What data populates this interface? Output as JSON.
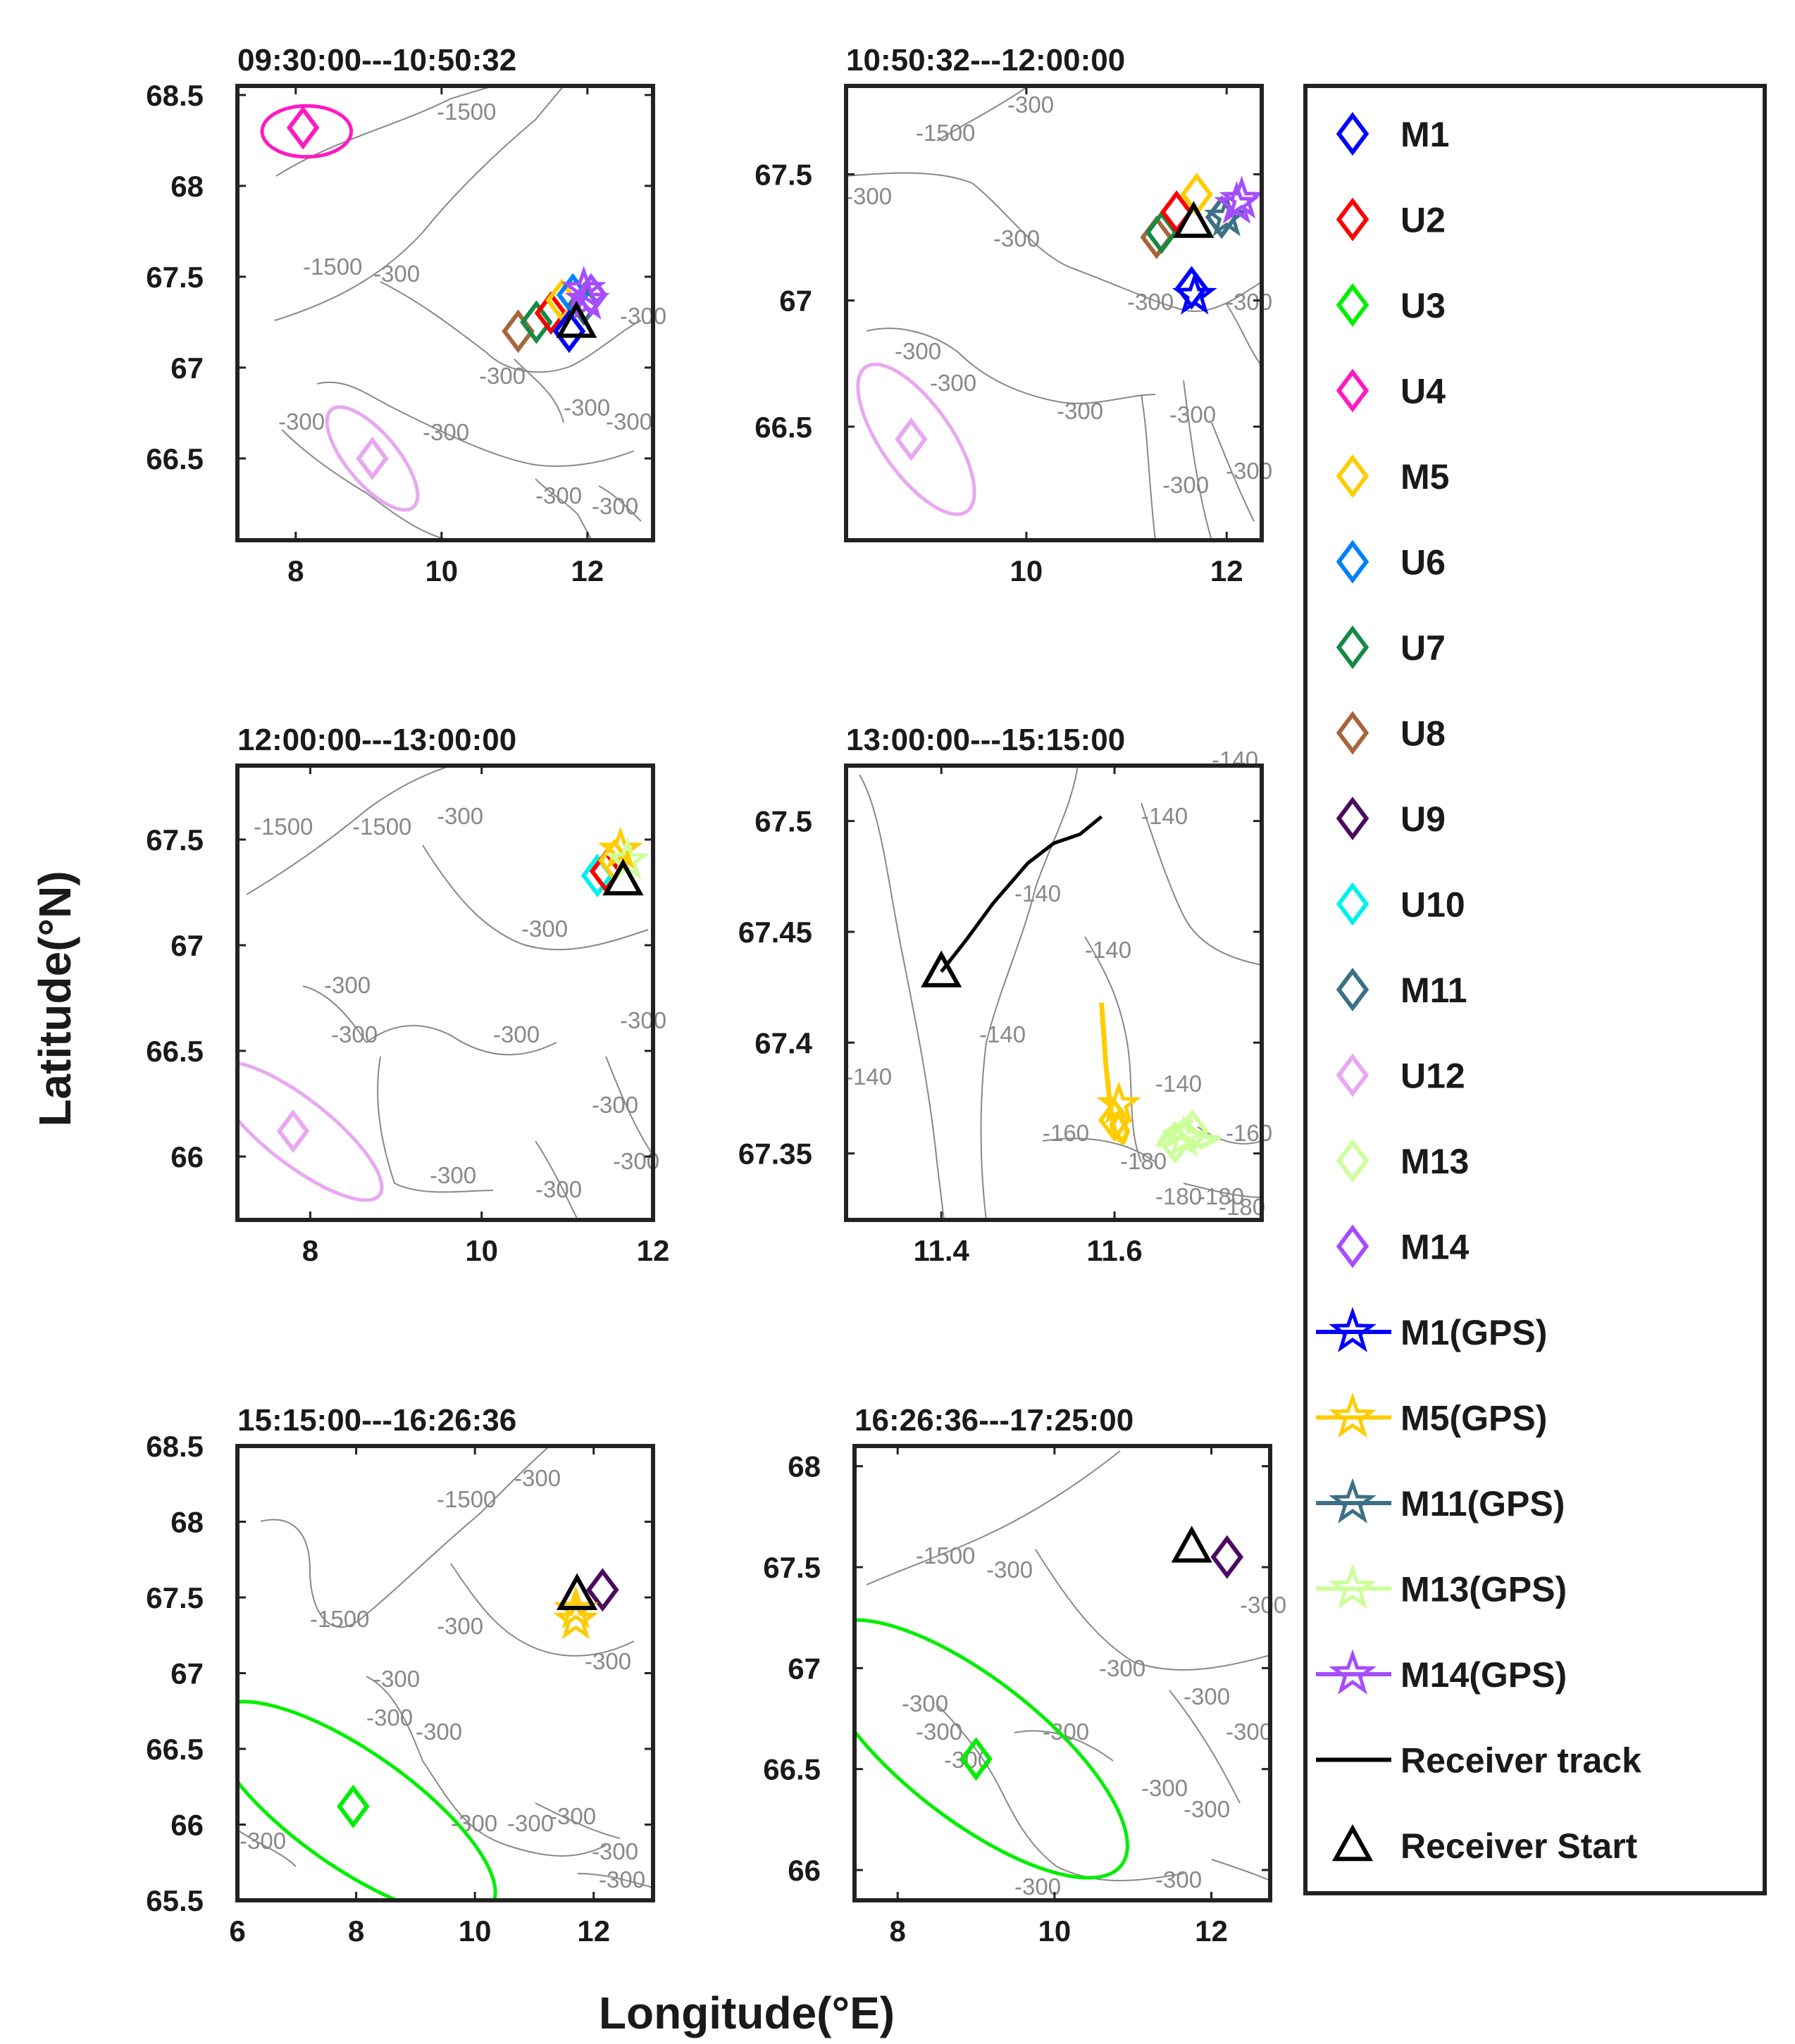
{
  "figure": {
    "xlabel": "Longitude(°E)",
    "ylabel": "Latitude(°N)"
  },
  "colors": {
    "M1": "#0000ff",
    "U2": "#ff0000",
    "U3": "#00ee00",
    "U4": "#ff19c0",
    "M5": "#ffcc00",
    "U6": "#0080ff",
    "U7": "#158a45",
    "U8": "#a8643c",
    "U9": "#4b0a60",
    "U10": "#00f0f0",
    "M11": "#3c7086",
    "U12": "#e8a8f0",
    "M13": "#ccff99",
    "M14": "#a64dff",
    "receiver": "#000000",
    "contour": "#888888"
  },
  "legend": {
    "items": [
      {
        "label": "M1",
        "marker": "diamond",
        "color": "#0000ff"
      },
      {
        "label": "U2",
        "marker": "diamond",
        "color": "#ff0000"
      },
      {
        "label": "U3",
        "marker": "diamond",
        "color": "#00ee00"
      },
      {
        "label": "U4",
        "marker": "diamond",
        "color": "#ff19c0"
      },
      {
        "label": "M5",
        "marker": "diamond",
        "color": "#ffcc00"
      },
      {
        "label": "U6",
        "marker": "diamond",
        "color": "#0080ff"
      },
      {
        "label": "U7",
        "marker": "diamond",
        "color": "#158a45"
      },
      {
        "label": "U8",
        "marker": "diamond",
        "color": "#a8643c"
      },
      {
        "label": "U9",
        "marker": "diamond",
        "color": "#4b0a60"
      },
      {
        "label": "U10",
        "marker": "diamond",
        "color": "#00f0f0"
      },
      {
        "label": "M11",
        "marker": "diamond",
        "color": "#3c7086"
      },
      {
        "label": "U12",
        "marker": "diamond",
        "color": "#e8a8f0"
      },
      {
        "label": "M13",
        "marker": "diamond",
        "color": "#ccff99"
      },
      {
        "label": "M14",
        "marker": "diamond",
        "color": "#a64dff"
      },
      {
        "label": "M1(GPS)",
        "marker": "star-line",
        "color": "#0000ff"
      },
      {
        "label": "M5(GPS)",
        "marker": "star-line",
        "color": "#ffcc00"
      },
      {
        "label": "M11(GPS)",
        "marker": "star-line",
        "color": "#3c7086"
      },
      {
        "label": "M13(GPS)",
        "marker": "star-line",
        "color": "#ccff99"
      },
      {
        "label": "M14(GPS)",
        "marker": "star-line",
        "color": "#a64dff"
      },
      {
        "label": "Receiver track",
        "marker": "line",
        "color": "#000000"
      },
      {
        "label": "Receiver Start",
        "marker": "triangle",
        "color": "#000000"
      }
    ]
  },
  "chart_data": [
    {
      "type": "scatter",
      "title": "09:30:00---10:50:32",
      "xlim": [
        7.2,
        12.9
      ],
      "ylim": [
        66.05,
        68.55
      ],
      "xticks": [
        8,
        10,
        12
      ],
      "yticks": [
        66.5,
        67,
        67.5,
        68,
        68.5
      ],
      "xtick_labels": [
        "8",
        "10",
        "12"
      ],
      "ytick_labels": [
        "66.5",
        "67",
        "67.5",
        "68",
        "68.5"
      ],
      "contour_labels": [
        "-1500",
        "-1500",
        "-300",
        "-300",
        "-300",
        "-300",
        "-300",
        "-300",
        "-300",
        "-300",
        "-300"
      ],
      "diamonds": [
        {
          "id": "U4",
          "lon": 8.1,
          "lat": 68.32
        },
        {
          "id": "U12",
          "lon": 9.05,
          "lat": 66.5
        },
        {
          "id": "U8",
          "lon": 11.05,
          "lat": 67.2
        },
        {
          "id": "U7",
          "lon": 11.3,
          "lat": 67.25
        },
        {
          "id": "U2",
          "lon": 11.5,
          "lat": 67.3
        },
        {
          "id": "M5",
          "lon": 11.65,
          "lat": 67.37
        },
        {
          "id": "U6",
          "lon": 11.8,
          "lat": 67.4
        },
        {
          "id": "M1",
          "lon": 11.75,
          "lat": 67.2
        },
        {
          "id": "M11",
          "lon": 11.95,
          "lat": 67.35
        },
        {
          "id": "M14",
          "lon": 12.05,
          "lat": 67.4
        }
      ],
      "ellipses": [
        {
          "id": "U4",
          "lon": 8.15,
          "lat": 68.3,
          "semi_major_deg": 0.35,
          "semi_minor_deg": 0.2,
          "angle": 0
        },
        {
          "id": "U12",
          "lon": 9.05,
          "lat": 66.5,
          "semi_major_deg": 0.5,
          "semi_minor_deg": 0.2,
          "angle": 50
        }
      ],
      "stars": [
        {
          "id": "M14",
          "lon": 12.0,
          "lat": 67.37
        },
        {
          "id": "M14",
          "lon": 11.95,
          "lat": 67.43
        }
      ],
      "receiver_start": {
        "lon": 11.85,
        "lat": 67.25
      }
    },
    {
      "type": "scatter",
      "title": "10:50:32---12:00:00",
      "xlim": [
        8.2,
        12.35
      ],
      "ylim": [
        66.05,
        67.85
      ],
      "xticks": [
        10,
        12
      ],
      "yticks": [
        66.5,
        67,
        67.5
      ],
      "xtick_labels": [
        "10",
        "12"
      ],
      "ytick_labels": [
        "66.5",
        "67",
        "67.5"
      ],
      "contour_labels": [
        "-1500",
        "-300",
        "-300",
        "-300",
        "-300",
        "-300",
        "-300",
        "-300",
        "-300",
        "-300",
        "-300",
        "-300"
      ],
      "diamonds": [
        {
          "id": "U8",
          "lon": 11.3,
          "lat": 67.25
        },
        {
          "id": "U7",
          "lon": 11.35,
          "lat": 67.27
        },
        {
          "id": "U2",
          "lon": 11.5,
          "lat": 67.35
        },
        {
          "id": "M5",
          "lon": 11.7,
          "lat": 67.42
        },
        {
          "id": "M11",
          "lon": 11.95,
          "lat": 67.33
        },
        {
          "id": "M1",
          "lon": 11.65,
          "lat": 67.05
        },
        {
          "id": "U12",
          "lon": 8.85,
          "lat": 66.45
        }
      ],
      "ellipses": [
        {
          "id": "U12",
          "lon": 8.9,
          "lat": 66.45,
          "semi_major_deg": 0.5,
          "semi_minor_deg": 0.2,
          "angle": 55
        }
      ],
      "stars": [
        {
          "id": "M1",
          "lon": 11.68,
          "lat": 67.02
        },
        {
          "id": "M11",
          "lon": 12.0,
          "lat": 67.33
        },
        {
          "id": "M14",
          "lon": 12.15,
          "lat": 67.4
        },
        {
          "id": "M14",
          "lon": 12.1,
          "lat": 67.38
        }
      ],
      "receiver_start": {
        "lon": 11.67,
        "lat": 67.31
      }
    },
    {
      "type": "scatter",
      "title": "12:00:00---13:00:00",
      "xlim": [
        7.15,
        12.0
      ],
      "ylim": [
        65.7,
        67.85
      ],
      "xticks": [
        8,
        10,
        12
      ],
      "yticks": [
        66,
        66.5,
        67,
        67.5
      ],
      "xtick_labels": [
        "8",
        "10",
        "12"
      ],
      "ytick_labels": [
        "66",
        "66.5",
        "67",
        "67.5"
      ],
      "contour_labels": [
        "-1500",
        "-1500",
        "-300",
        "-300",
        "-300",
        "-300",
        "-300",
        "-300",
        "-300",
        "-300",
        "-300",
        "-300"
      ],
      "diamonds": [
        {
          "id": "U10",
          "lon": 11.35,
          "lat": 67.33
        },
        {
          "id": "U2",
          "lon": 11.45,
          "lat": 67.35
        },
        {
          "id": "M5",
          "lon": 11.55,
          "lat": 67.4
        },
        {
          "id": "U12",
          "lon": 7.8,
          "lat": 66.12
        }
      ],
      "ellipses": [
        {
          "id": "U12",
          "lon": 7.85,
          "lat": 66.12,
          "semi_major_deg": 0.7,
          "semi_minor_deg": 0.22,
          "angle": 38
        }
      ],
      "stars": [
        {
          "id": "M5",
          "lon": 11.62,
          "lat": 67.45
        },
        {
          "id": "M13",
          "lon": 11.7,
          "lat": 67.4
        }
      ],
      "receiver_start": {
        "lon": 11.65,
        "lat": 67.31
      }
    },
    {
      "type": "line",
      "title": "13:00:00---15:15:00",
      "xlim": [
        11.29,
        11.77
      ],
      "ylim": [
        67.32,
        67.525
      ],
      "xticks": [
        11.4,
        11.6
      ],
      "yticks": [
        67.35,
        67.4,
        67.45,
        67.5
      ],
      "xtick_labels": [
        "11.4",
        "11.6"
      ],
      "ytick_labels": [
        "67.35",
        "67.4",
        "67.45",
        "67.5"
      ],
      "contour_labels": [
        "-140",
        "-140",
        "-140",
        "-140",
        "-140",
        "-140",
        "-140",
        "-160",
        "-180",
        "-180",
        "-180",
        "-180",
        "-160"
      ],
      "receiver_track": {
        "lon": [
          11.4,
          11.43,
          11.46,
          11.5,
          11.53,
          11.56,
          11.585
        ],
        "lat": [
          67.432,
          67.447,
          67.463,
          67.481,
          67.49,
          67.494,
          67.502
        ]
      },
      "m5_track": {
        "lon": [
          11.585,
          11.59,
          11.595,
          11.6,
          11.61,
          11.615,
          11.605,
          11.597,
          11.6,
          11.61
        ],
        "lat": [
          67.418,
          67.39,
          67.372,
          67.36,
          67.355,
          67.36,
          67.368,
          67.363,
          67.358,
          67.355
        ]
      },
      "m13_track": {
        "lon": [
          11.65,
          11.66,
          11.68,
          11.7,
          11.72,
          11.7,
          11.68,
          11.66,
          11.675,
          11.69
        ],
        "lat": [
          67.353,
          67.36,
          67.364,
          67.358,
          67.357,
          67.353,
          67.358,
          67.354,
          67.362,
          67.365
        ]
      },
      "diamonds": [
        {
          "id": "M5",
          "lon": 11.6,
          "lat": 67.365
        },
        {
          "id": "M13",
          "lon": 11.67,
          "lat": 67.355
        },
        {
          "id": "M13",
          "lon": 11.69,
          "lat": 67.36
        }
      ],
      "stars": [
        {
          "id": "M5",
          "lon": 11.605,
          "lat": 67.372
        },
        {
          "id": "M13",
          "lon": 11.68,
          "lat": 67.357
        }
      ],
      "receiver_start": {
        "lon": 11.4,
        "lat": 67.432
      }
    },
    {
      "type": "scatter",
      "title": "15:15:00---16:26:36",
      "xlim": [
        6.0,
        13.0
      ],
      "ylim": [
        65.5,
        68.5
      ],
      "xticks": [
        6,
        8,
        10,
        12
      ],
      "yticks": [
        65.5,
        66,
        66.5,
        67,
        67.5,
        68,
        68.5
      ],
      "xtick_labels": [
        "6",
        "8",
        "10",
        "12"
      ],
      "ytick_labels": [
        "65.5",
        "66",
        "66.5",
        "67",
        "67.5",
        "68",
        "68.5"
      ],
      "contour_labels": [
        "-1500",
        "-1500",
        "-300",
        "-300",
        "-300",
        "-300",
        "-300",
        "-300",
        "-300",
        "-300",
        "-300",
        "-300",
        "-300",
        "-300"
      ],
      "diamonds": [
        {
          "id": "U3",
          "lon": 7.95,
          "lat": 66.12
        },
        {
          "id": "U9",
          "lon": 12.15,
          "lat": 67.55
        }
      ],
      "ellipses": [
        {
          "id": "U3",
          "lon": 7.95,
          "lat": 66.1,
          "semi_major_deg": 1.6,
          "semi_minor_deg": 0.55,
          "angle": 35
        }
      ],
      "stars": [
        {
          "id": "M5",
          "lon": 11.7,
          "lat": 67.42
        },
        {
          "id": "M5",
          "lon": 11.7,
          "lat": 67.35
        }
      ],
      "receiver_start": {
        "lon": 11.72,
        "lat": 67.52
      }
    },
    {
      "type": "scatter",
      "title": "16:26:36---17:25:00",
      "xlim": [
        7.45,
        12.75
      ],
      "ylim": [
        65.85,
        68.1
      ],
      "xticks": [
        8,
        10,
        12
      ],
      "yticks": [
        66,
        66.5,
        67,
        67.5,
        68
      ],
      "xtick_labels": [
        "8",
        "10",
        "12"
      ],
      "ytick_labels": [
        "66",
        "66.5",
        "67",
        "67.5",
        "68"
      ],
      "contour_labels": [
        "-1500",
        "-300",
        "-300",
        "-300",
        "-300",
        "-300",
        "-300",
        "-300",
        "-300",
        "-300",
        "-300",
        "-300",
        "-300",
        "-300"
      ],
      "diamonds": [
        {
          "id": "U3",
          "lon": 9.0,
          "lat": 66.55
        },
        {
          "id": "U9",
          "lon": 12.2,
          "lat": 67.55
        }
      ],
      "ellipses": [
        {
          "id": "U3",
          "lon": 8.95,
          "lat": 66.6,
          "semi_major_deg": 1.35,
          "semi_minor_deg": 0.5,
          "angle": 38
        }
      ],
      "stars": [],
      "receiver_start": {
        "lon": 11.75,
        "lat": 67.6
      }
    }
  ]
}
